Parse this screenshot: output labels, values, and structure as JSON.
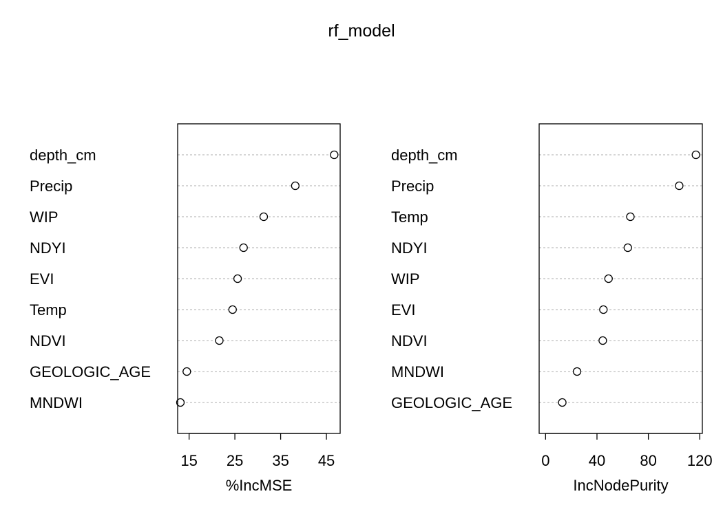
{
  "title": "rf_model",
  "chart_data": [
    {
      "type": "scatter",
      "subtype": "dotchart",
      "xlabel": "%IncMSE",
      "xlim": [
        12.5,
        48
      ],
      "xticks": [
        15,
        25,
        35,
        45
      ],
      "grid": "horizontal dotted",
      "categories": [
        "depth_cm",
        "Precip",
        "WIP",
        "NDYI",
        "EVI",
        "Temp",
        "NDVI",
        "GEOLOGIC_AGE",
        "MNDWI"
      ],
      "values": [
        46.7,
        38.2,
        31.3,
        26.9,
        25.6,
        24.5,
        21.6,
        14.5,
        13.1
      ]
    },
    {
      "type": "scatter",
      "subtype": "dotchart",
      "xlabel": "IncNodePurity",
      "xlim": [
        -5,
        122
      ],
      "xticks": [
        0,
        40,
        80,
        120
      ],
      "grid": "horizontal dotted",
      "categories": [
        "depth_cm",
        "Precip",
        "Temp",
        "NDYI",
        "WIP",
        "EVI",
        "NDVI",
        "MNDWI",
        "GEOLOGIC_AGE"
      ],
      "values": [
        117,
        104,
        66,
        64,
        49,
        45,
        44.5,
        24.5,
        13
      ]
    }
  ]
}
